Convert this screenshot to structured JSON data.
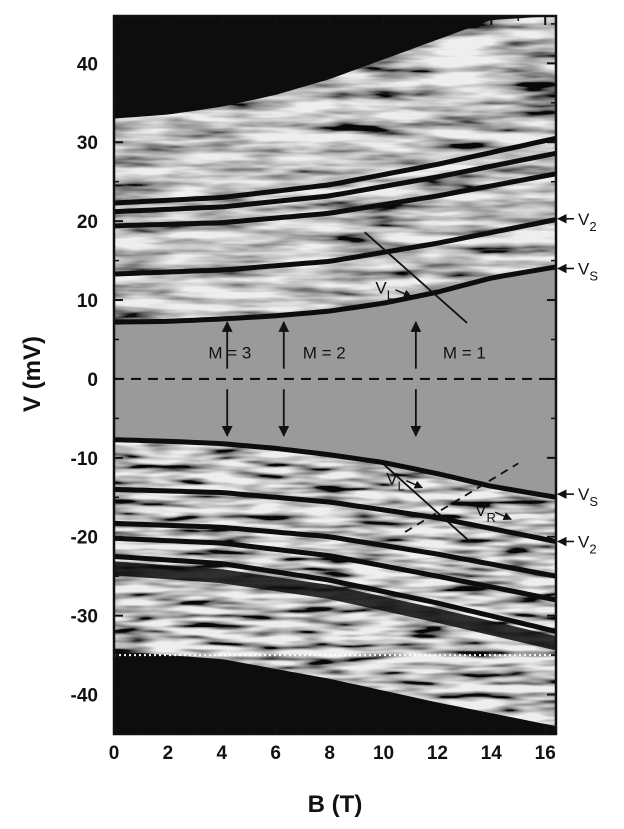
{
  "chart_data": {
    "type": "heatmap",
    "xlabel": "B (T)",
    "ylabel": "V (mV)",
    "xlim": [
      0,
      16.4
    ],
    "ylim": [
      -45,
      46
    ],
    "xticks": [
      0,
      2,
      4,
      6,
      8,
      10,
      12,
      14,
      16
    ],
    "yticks": [
      40,
      30,
      20,
      10,
      0,
      -10,
      -20,
      -30,
      -40
    ],
    "colormap": "grayscale",
    "colors": {
      "background": "#9a9a9a",
      "dark": "#0d0d0d",
      "light": "#e8e8e8"
    },
    "gap_edges": [
      {
        "name": "upper",
        "x": [
          0,
          2,
          4,
          6,
          8,
          10,
          12,
          14,
          16.4
        ],
        "y": [
          7.2,
          7.3,
          7.6,
          8.0,
          8.6,
          9.6,
          11.0,
          12.8,
          14.2
        ]
      },
      {
        "name": "lower",
        "x": [
          0,
          2,
          4,
          6,
          8,
          10,
          12,
          14,
          16.4
        ],
        "y": [
          -7.7,
          -7.9,
          -8.2,
          -8.8,
          -9.6,
          -10.6,
          -12.0,
          -13.6,
          -15.0
        ]
      }
    ],
    "dark_lines": [
      {
        "x": [
          0,
          4,
          8,
          12,
          16.4
        ],
        "y": [
          13.3,
          13.8,
          14.9,
          17.2,
          20.2
        ]
      },
      {
        "x": [
          0,
          4,
          8,
          12,
          16.4
        ],
        "y": [
          19.4,
          19.8,
          21.0,
          23.2,
          26.0
        ]
      },
      {
        "x": [
          0,
          4,
          8,
          12,
          16.4
        ],
        "y": [
          21.2,
          21.8,
          23.2,
          25.6,
          28.6
        ]
      },
      {
        "x": [
          0,
          4,
          8,
          12,
          16.4
        ],
        "y": [
          22.3,
          23.0,
          24.6,
          27.2,
          30.5
        ]
      },
      {
        "x": [
          0,
          4,
          8,
          12,
          16.4
        ],
        "y": [
          -14.0,
          -14.4,
          -15.6,
          -17.6,
          -20.6
        ]
      },
      {
        "x": [
          0,
          4,
          8,
          12,
          16.4
        ],
        "y": [
          -18.3,
          -18.8,
          -20.0,
          -22.2,
          -25.0
        ]
      },
      {
        "x": [
          0,
          4,
          8,
          12,
          16.4
        ],
        "y": [
          -20.2,
          -20.8,
          -22.4,
          -25.0,
          -28.0
        ]
      },
      {
        "x": [
          0,
          4,
          8,
          12,
          16.4
        ],
        "y": [
          -22.5,
          -23.4,
          -25.5,
          -28.4,
          -32.0
        ]
      }
    ],
    "reference_lines": [
      {
        "style": "dashed",
        "color": "#111111",
        "y": 0
      },
      {
        "style": "dotted",
        "color": "#ffffff",
        "y": -35
      }
    ],
    "straight_lines": [
      {
        "style": "solid",
        "x": [
          9.3,
          13.1
        ],
        "y": [
          18.6,
          7.1
        ]
      },
      {
        "style": "solid",
        "x": [
          10.0,
          13.2
        ],
        "y": [
          -10.8,
          -20.6
        ]
      },
      {
        "style": "dashed",
        "x": [
          10.8,
          15.0
        ],
        "y": [
          -19.4,
          -10.7
        ]
      }
    ],
    "arrows": [
      {
        "x": 4.2,
        "from": 1.3,
        "to": 7.2
      },
      {
        "x": 6.3,
        "from": 1.3,
        "to": 7.2
      },
      {
        "x": 11.2,
        "from": 1.3,
        "to": 7.2
      },
      {
        "x": 4.2,
        "from": -1.3,
        "to": -7.2
      },
      {
        "x": 6.3,
        "from": -1.3,
        "to": -7.2
      },
      {
        "x": 11.2,
        "from": -1.3,
        "to": -7.2
      }
    ],
    "annotations": [
      {
        "text": "M = 3",
        "x": 4.3,
        "y": 2.6
      },
      {
        "text": "M = 2",
        "x": 7.8,
        "y": 2.6
      },
      {
        "text": "M = 1",
        "x": 13.0,
        "y": 2.6
      }
    ],
    "inline_labels": [
      {
        "main": "V",
        "sub": "L",
        "x": 9.7,
        "y": 10.8
      },
      {
        "main": "V",
        "sub": "L",
        "x": 10.1,
        "y": -13.4
      },
      {
        "main": "V",
        "sub": "R",
        "x": 13.4,
        "y": -17.4
      }
    ],
    "right_labels": [
      {
        "main": "V",
        "sub": "2",
        "y": 20.3
      },
      {
        "main": "V",
        "sub": "S",
        "y": 14.0
      },
      {
        "main": "V",
        "sub": "S",
        "y": -14.6
      },
      {
        "main": "V",
        "sub": "2",
        "y": -20.6
      }
    ]
  }
}
